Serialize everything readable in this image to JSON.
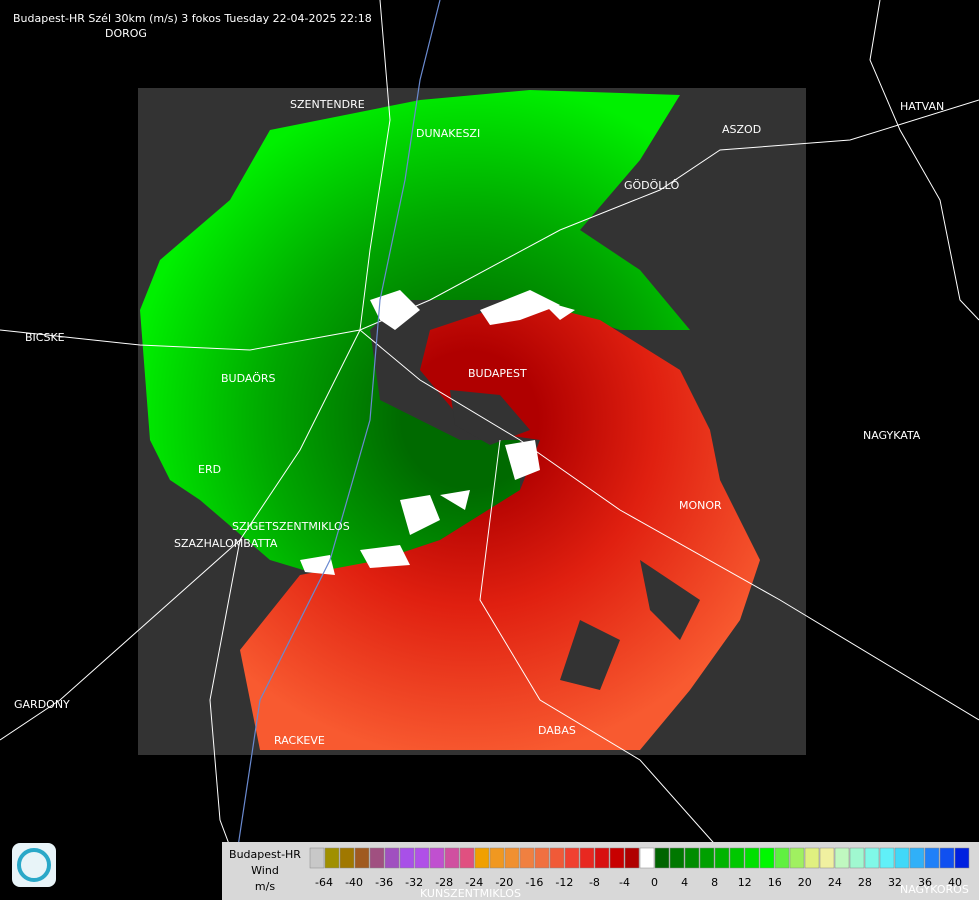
{
  "header": {
    "title": "Budapest-HR Szél 30km (m/s) 3 fokos Tuesday 22-04-2025 22:18"
  },
  "cities": [
    "DOROG",
    "SZENTENDRE",
    "DUNAKESZI",
    "ASZOD",
    "HATVAN",
    "GÖDÖLLŐ",
    "BICSKE",
    "BUDAÖRS",
    "BUDAPEST",
    "NAGYKATA",
    "ERD",
    "MONOR",
    "SZIGETSZENTMIKLOS",
    "SZAZHALOMBATTA",
    "GARDONY",
    "RACKEVE",
    "DABAS",
    "KUNSZENTMIKLOS",
    "NAGYKOROS"
  ],
  "legend": {
    "station": "Budapest-HR",
    "quantity": "Wind",
    "unit": "m/s",
    "labels": [
      -64,
      -40,
      -36,
      -32,
      -28,
      -24,
      -20,
      -16,
      -12,
      -8,
      -4,
      0,
      4,
      8,
      12,
      16,
      20,
      24,
      28,
      32,
      36,
      40
    ],
    "colors": [
      "#c8c8c8",
      "#a09000",
      "#a07800",
      "#a05a20",
      "#a05080",
      "#a050c0",
      "#a850e8",
      "#b050e8",
      "#c050d0",
      "#d050a0",
      "#e05080",
      "#f0a000",
      "#f09820",
      "#f09030",
      "#f08040",
      "#f07040",
      "#f05a38",
      "#f04030",
      "#e82820",
      "#d81010",
      "#c80000",
      "#b00000",
      "#ffffff",
      "#006400",
      "#007800",
      "#008c00",
      "#00a000",
      "#00b400",
      "#00c800",
      "#00e000",
      "#00f800",
      "#60f040",
      "#a0f060",
      "#e0f080",
      "#f0f0a0",
      "#c0f8c0",
      "#a0f8d0",
      "#80f8e8",
      "#60f0f8",
      "#40d8f8",
      "#30b0f8",
      "#2080f8",
      "#1050f0",
      "#0020e0"
    ]
  }
}
